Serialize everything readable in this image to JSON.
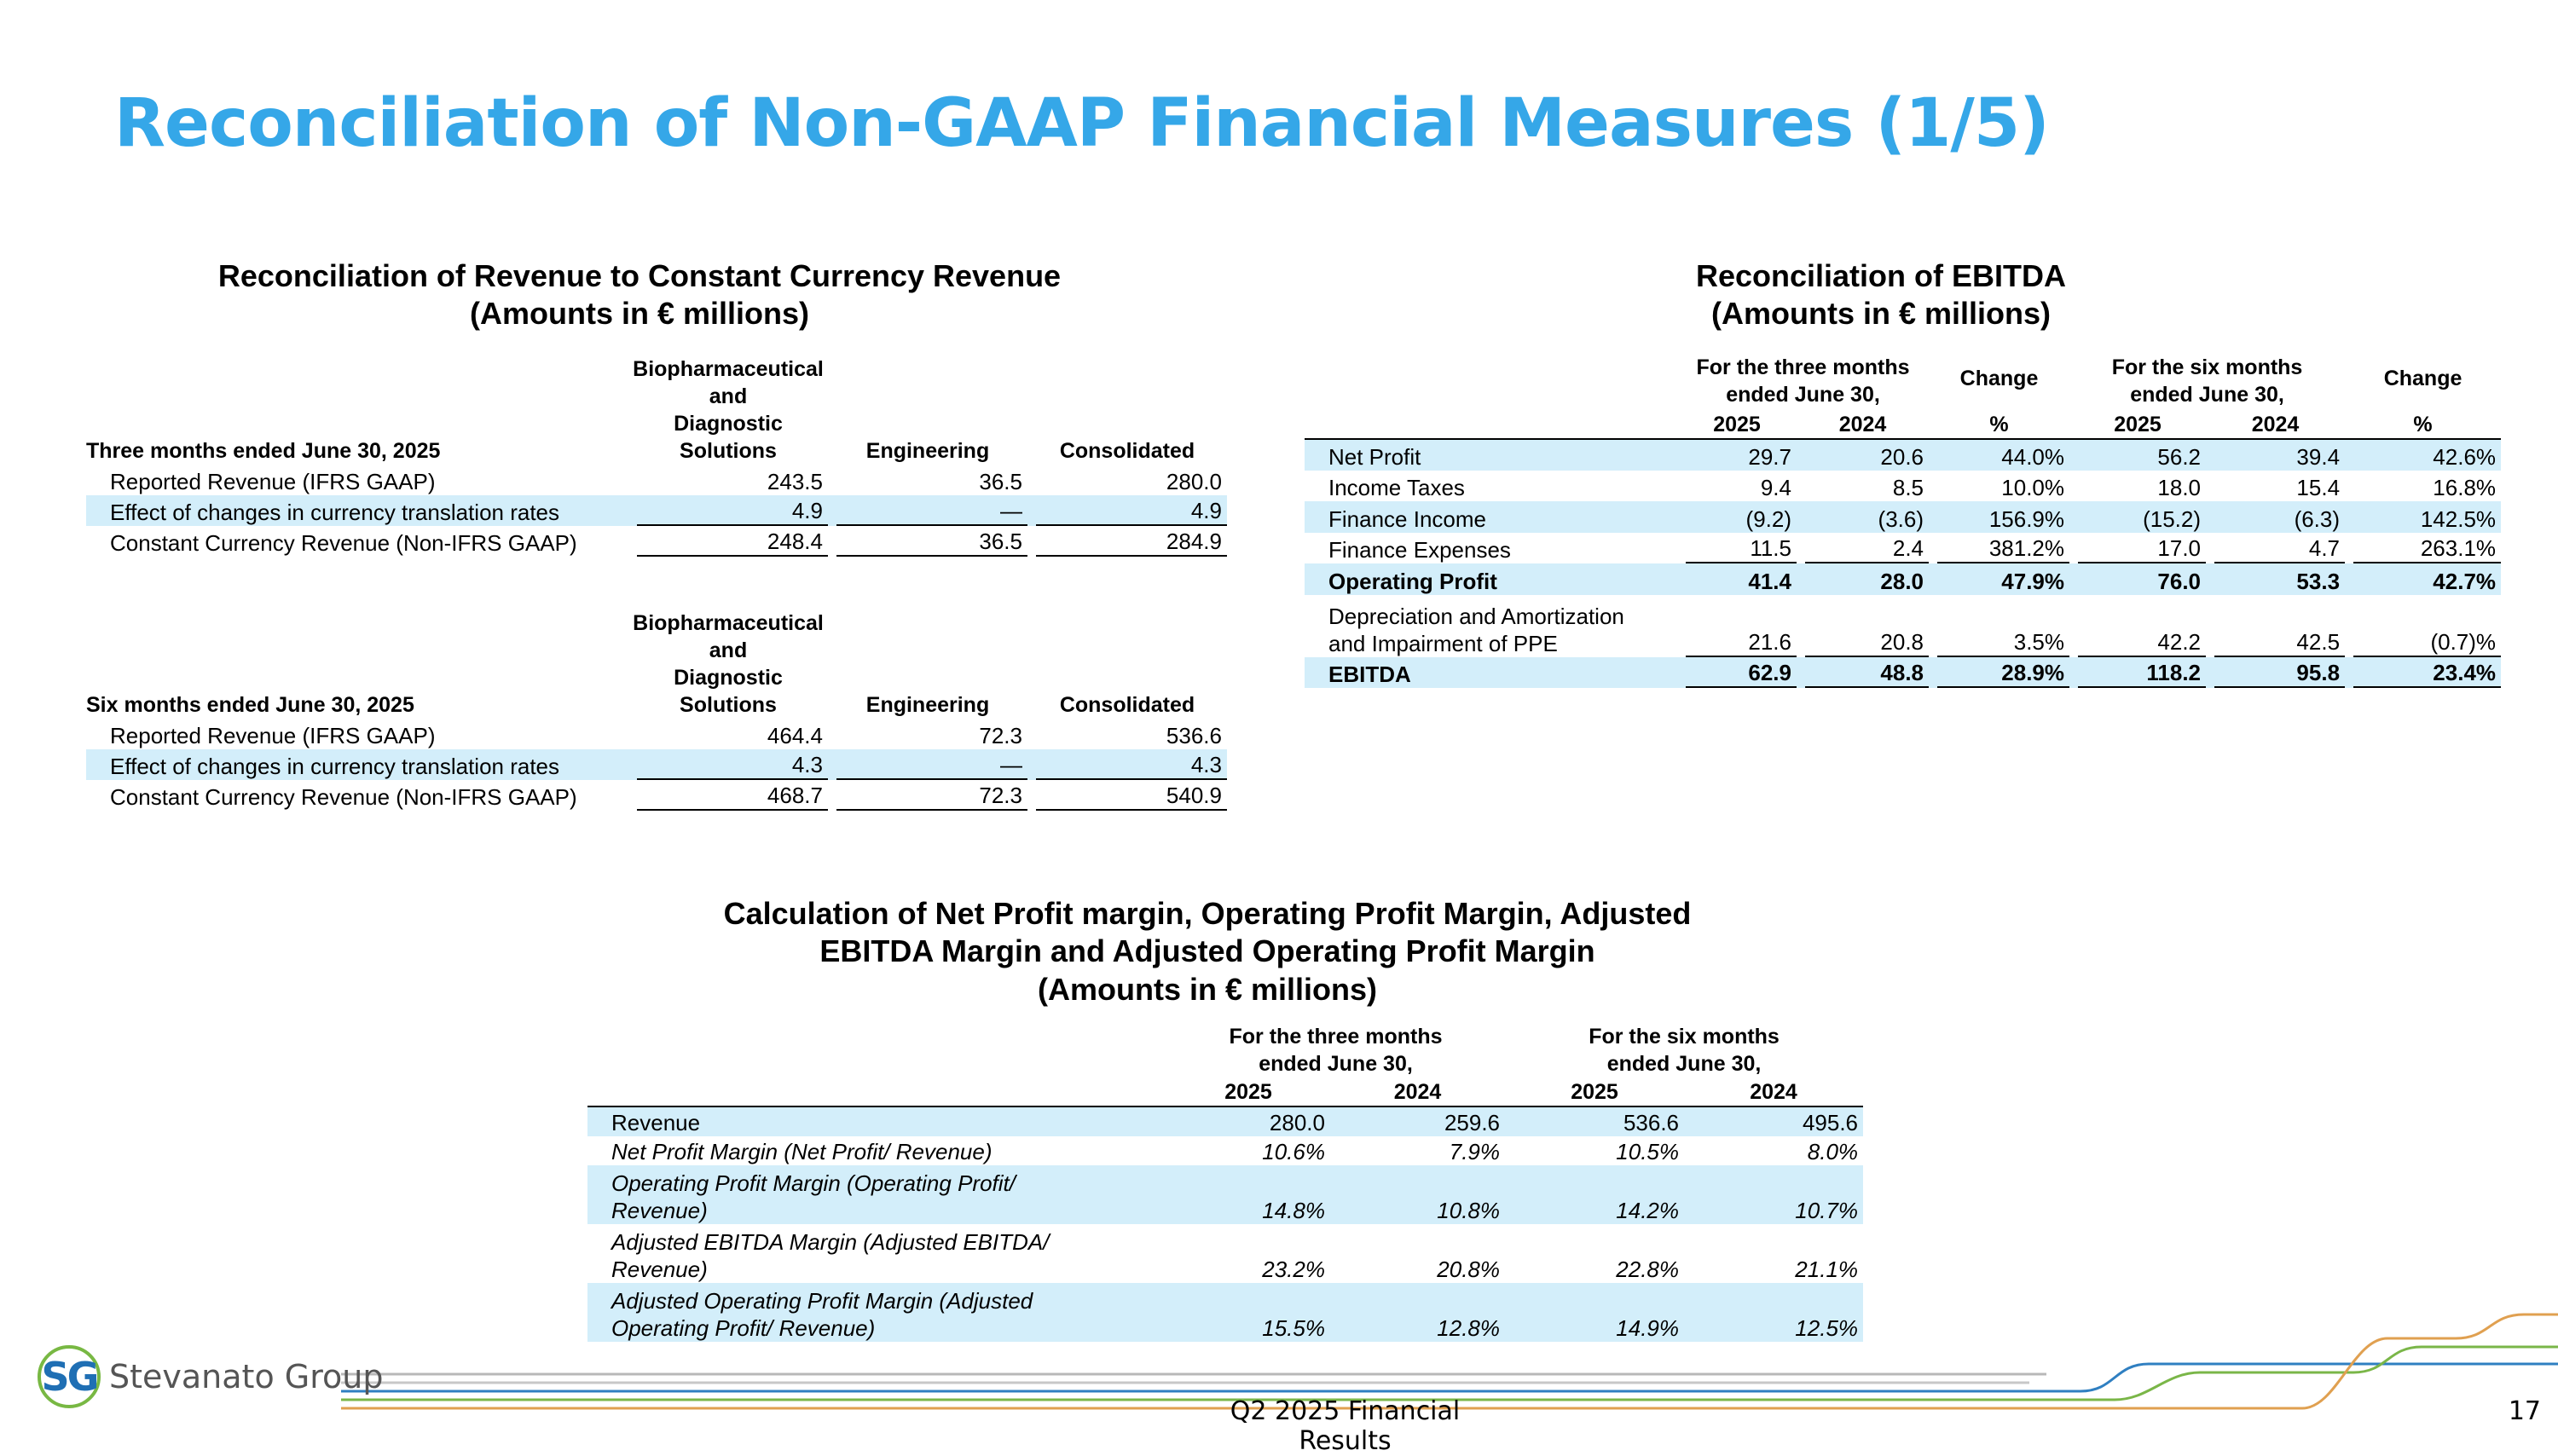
{
  "title": "Reconciliation of Non-GAAP Financial Measures (1/5)",
  "revenue_reconciliation": {
    "title": "Reconciliation of Revenue to Constant Currency Revenue",
    "subtitle": "(Amounts in € millions)",
    "columns": [
      "Biopharmaceutical\nand\nDiagnostic\nSolutions",
      "Engineering",
      "Consolidated"
    ],
    "sections": [
      {
        "period": "Three months ended June 30, 2025",
        "rows": [
          {
            "label": "Reported Revenue (IFRS GAAP)",
            "values": [
              "243.5",
              "36.5",
              "280.0"
            ]
          },
          {
            "label": "Effect of changes in currency translation rates",
            "values": [
              "4.9",
              "—",
              "4.9"
            ]
          },
          {
            "label": "Constant Currency Revenue (Non-IFRS GAAP)",
            "values": [
              "248.4",
              "36.5",
              "284.9"
            ]
          }
        ]
      },
      {
        "period": "Six months ended June 30, 2025",
        "rows": [
          {
            "label": "Reported Revenue (IFRS GAAP)",
            "values": [
              "464.4",
              "72.3",
              "536.6"
            ]
          },
          {
            "label": "Effect of changes in currency translation rates",
            "values": [
              "4.3",
              "—",
              "4.3"
            ]
          },
          {
            "label": "Constant Currency Revenue (Non-IFRS GAAP)",
            "values": [
              "468.7",
              "72.3",
              "540.9"
            ]
          }
        ]
      }
    ]
  },
  "ebitda_reconciliation": {
    "title": "Reconciliation of EBITDA",
    "subtitle": "(Amounts in € millions)",
    "periods": [
      "For the three months\nended June 30,",
      "For the six months\nended June 30,"
    ],
    "change": "Change",
    "subcolumns": [
      "2025",
      "2024",
      "%",
      "2025",
      "2024",
      "%"
    ],
    "rows": [
      {
        "label": "Net Profit",
        "values": [
          "29.7",
          "20.6",
          "44.0%",
          "56.2",
          "39.4",
          "42.6%"
        ]
      },
      {
        "label": "Income Taxes",
        "values": [
          "9.4",
          "8.5",
          "10.0%",
          "18.0",
          "15.4",
          "16.8%"
        ]
      },
      {
        "label": "Finance Income",
        "values": [
          "(9.2)",
          "(3.6)",
          "156.9%",
          "(15.2)",
          "(6.3)",
          "142.5%"
        ]
      },
      {
        "label": "Finance Expenses",
        "values": [
          "11.5",
          "2.4",
          "381.2%",
          "17.0",
          "4.7",
          "263.1%"
        ]
      },
      {
        "label": "Operating Profit",
        "values": [
          "41.4",
          "28.0",
          "47.9%",
          "76.0",
          "53.3",
          "42.7%"
        ],
        "bold": true
      },
      {
        "label": "Depreciation and Amortization\nand Impairment of PPE",
        "values": [
          "21.6",
          "20.8",
          "3.5%",
          "42.2",
          "42.5",
          "(0.7)%"
        ]
      },
      {
        "label": "EBITDA",
        "values": [
          "62.9",
          "48.8",
          "28.9%",
          "118.2",
          "95.8",
          "23.4%"
        ],
        "bold": true
      }
    ]
  },
  "margin_calculation": {
    "title": "Calculation of Net Profit margin, Operating Profit Margin, Adjusted\nEBITDA Margin and Adjusted Operating Profit Margin",
    "subtitle": "(Amounts in € millions)",
    "periods": [
      "For the three months\nended June 30,",
      "For the six months\nended June 30,"
    ],
    "years": [
      "2025",
      "2024",
      "2025",
      "2024"
    ],
    "rows": [
      {
        "label": "Revenue",
        "values": [
          "280.0",
          "259.6",
          "536.6",
          "495.6"
        ]
      },
      {
        "label": "Net Profit Margin (Net Profit/ Revenue)",
        "values": [
          "10.6%",
          "7.9%",
          "10.5%",
          "8.0%"
        ],
        "italic": true
      },
      {
        "label": "Operating Profit Margin (Operating Profit/\nRevenue)",
        "values": [
          "14.8%",
          "10.8%",
          "14.2%",
          "10.7%"
        ],
        "italic": true
      },
      {
        "label": "Adjusted EBITDA Margin (Adjusted EBITDA/\nRevenue)",
        "values": [
          "23.2%",
          "20.8%",
          "22.8%",
          "21.1%"
        ],
        "italic": true
      },
      {
        "label": "Adjusted Operating Profit Margin (Adjusted\nOperating Profit/ Revenue)",
        "values": [
          "15.5%",
          "12.8%",
          "14.9%",
          "12.5%"
        ],
        "italic": true
      }
    ]
  },
  "footer": {
    "logo_mark": "SG",
    "logo_text": "Stevanato Group",
    "text": "Q2 2025 Financial Results",
    "page_number": "17"
  }
}
